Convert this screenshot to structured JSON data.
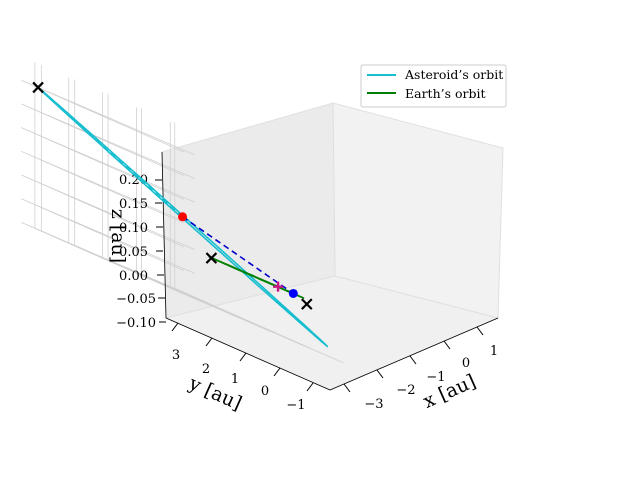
{
  "chart_data": {
    "type": "line3d",
    "title": "",
    "axes": {
      "x": {
        "label": "x [au]",
        "ticks": [
          -3,
          -2,
          -1,
          0,
          1
        ],
        "tick_labels": [
          "−3",
          "−2",
          "−1",
          "0",
          "1"
        ],
        "lim": [
          -3.6,
          1.6
        ]
      },
      "y": {
        "label": "y [au]",
        "ticks": [
          -1,
          0,
          1,
          2,
          3
        ],
        "tick_labels": [
          "−1",
          "0",
          "1",
          "2",
          "3"
        ],
        "lim": [
          -1.4,
          3.4
        ]
      },
      "z": {
        "label": "z [au]",
        "ticks": [
          -0.1,
          -0.05,
          0.0,
          0.05,
          0.1,
          0.15,
          0.2
        ],
        "tick_labels": [
          "−0.10",
          "−0.05",
          "0.00",
          "0.05",
          "0.10",
          "0.15",
          "0.20"
        ],
        "lim": [
          -0.1,
          0.25
        ]
      }
    },
    "grid": true,
    "legend": {
      "placement": "top-right"
    },
    "series": [
      {
        "name": "Asteroid's orbit",
        "color": "#17becf",
        "style": "ellipse",
        "center": [
          -1.0,
          1.2,
          0.06
        ],
        "semi_axes": [
          [
            -2.2,
            2.1,
            0.14
          ],
          [
            0.3,
            0.4,
            0.0
          ]
        ]
      },
      {
        "name": "Earth's orbit",
        "color": "#008000",
        "style": "circle",
        "center": [
          0.0,
          0.0,
          0.0
        ],
        "radius": 1.0
      }
    ],
    "lines": [
      {
        "from": [
          -1.0,
          1.2,
          0.06
        ],
        "to": [
          -3.2,
          3.3,
          0.2
        ],
        "color": "#17becf",
        "dash": true
      },
      {
        "from": [
          -1.0,
          1.2,
          0.06
        ],
        "to": [
          0.8,
          -0.3,
          0.0
        ],
        "color": "#0000cd",
        "dash": true
      }
    ],
    "markers": [
      {
        "x": -1.0,
        "y": 1.2,
        "z": 0.06,
        "color": "#ff0000",
        "shape": "circle"
      },
      {
        "x": 0.8,
        "y": -0.3,
        "z": 0.0,
        "color": "#0000ff",
        "shape": "circle"
      },
      {
        "x": -3.2,
        "y": 3.3,
        "z": 0.2,
        "color": "#000000",
        "shape": "x"
      },
      {
        "x": -1.2,
        "y": 0.15,
        "z": 0.0,
        "color": "#000000",
        "shape": "x"
      },
      {
        "x": 0.95,
        "y": -0.55,
        "z": -0.01,
        "color": "#000000",
        "shape": "x"
      },
      {
        "x": 0.9,
        "y": 0.25,
        "z": 0.0,
        "color": "#c71585",
        "shape": "plus"
      }
    ],
    "legend_entries": [
      "Asteroid’s orbit",
      "Earth’s orbit"
    ]
  }
}
